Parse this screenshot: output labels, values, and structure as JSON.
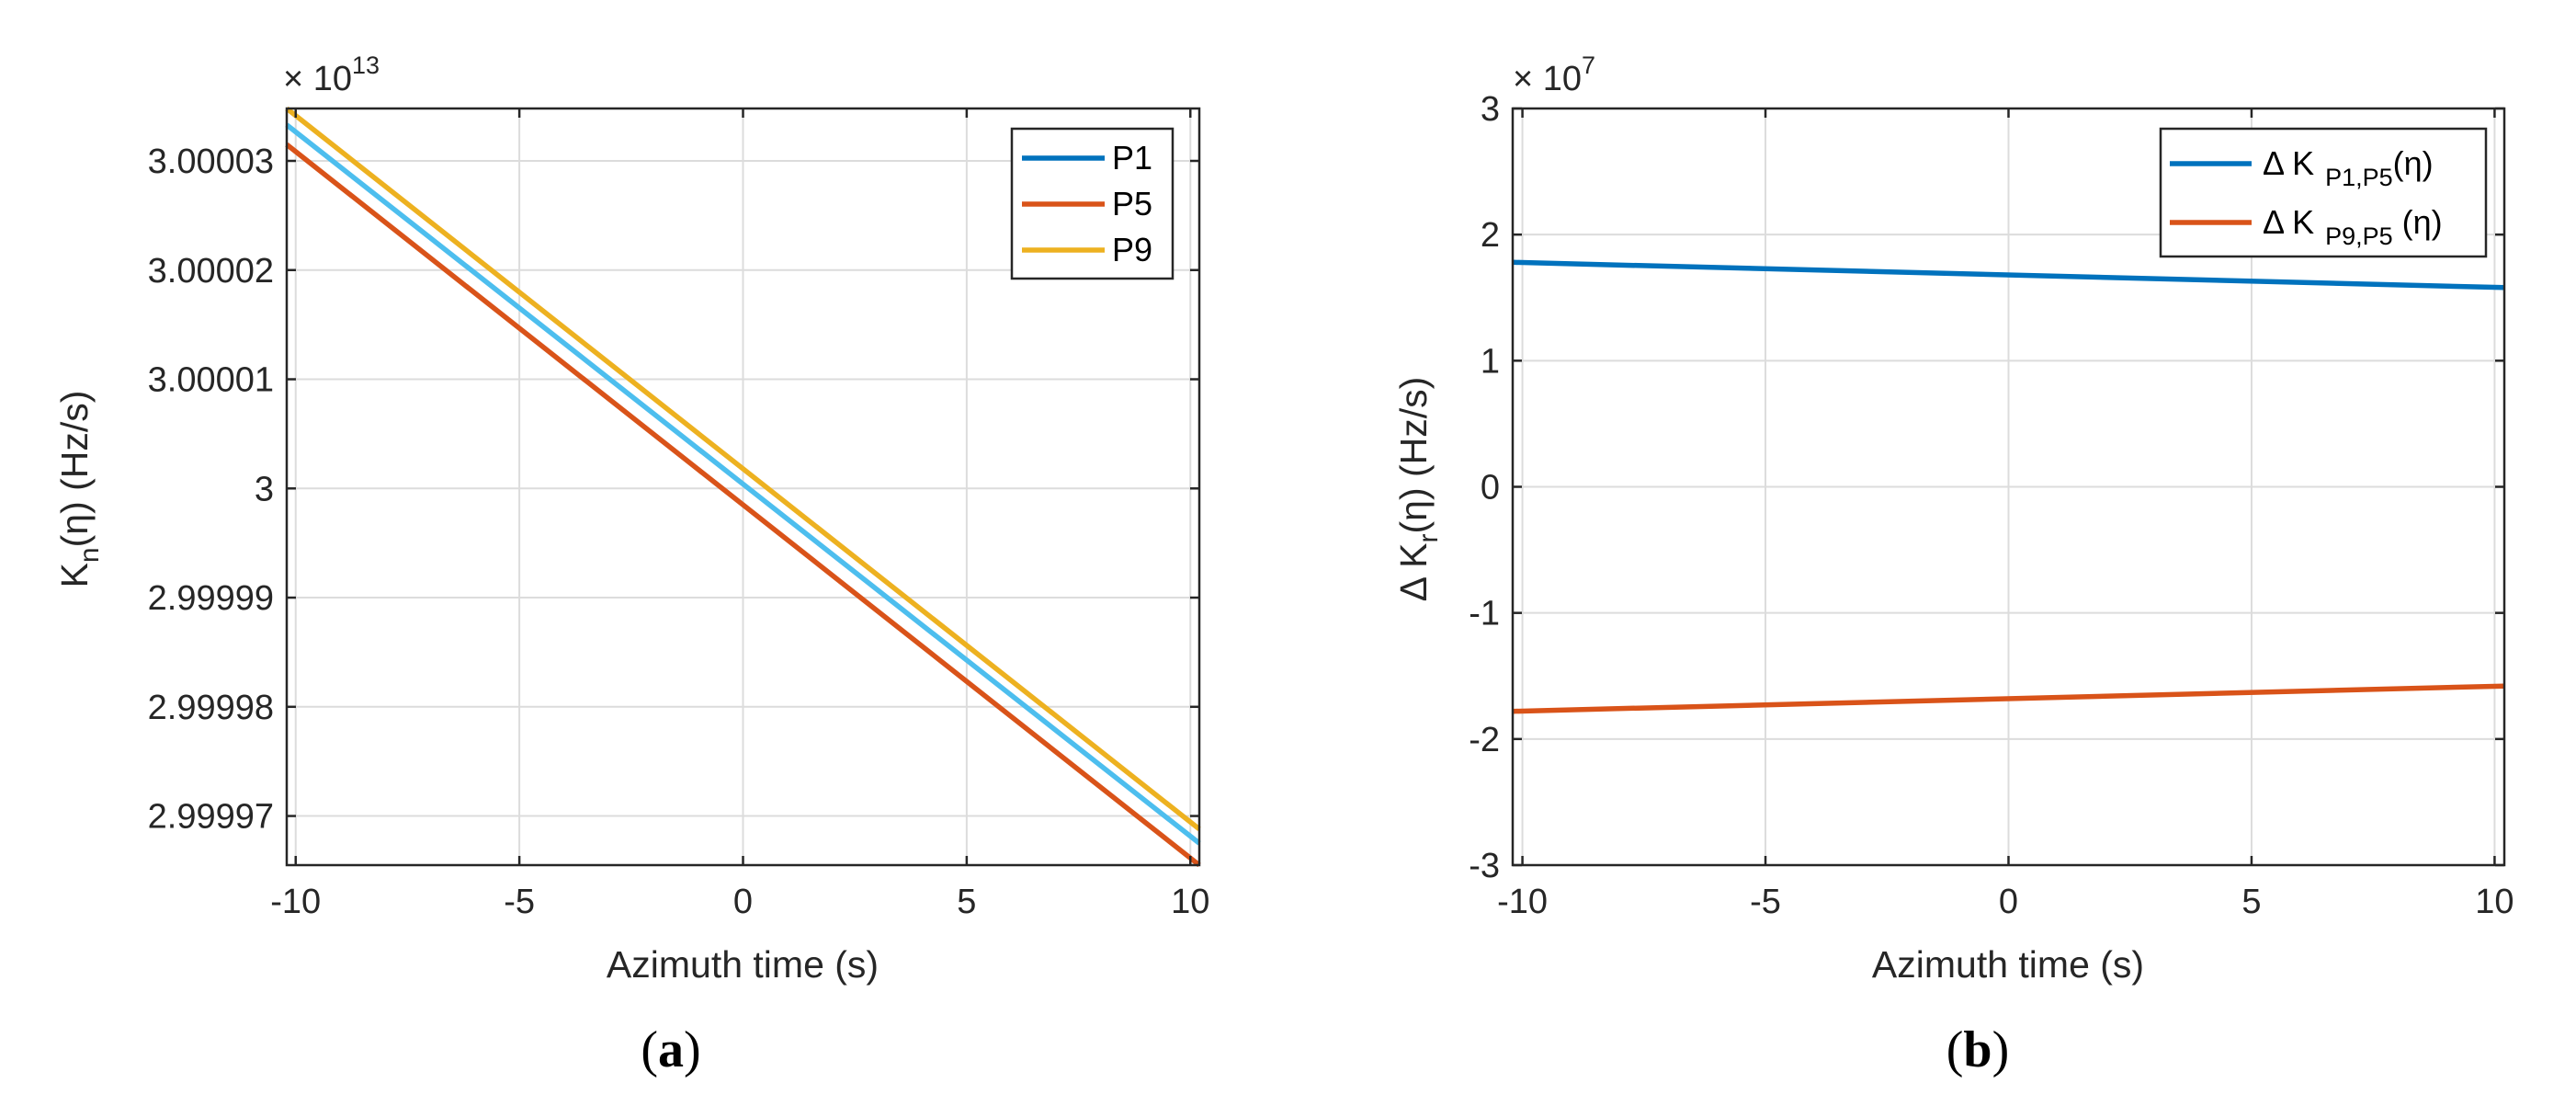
{
  "chart_data": [
    {
      "type": "line",
      "exponent_label": "× 10",
      "exponent_power": "13",
      "ylabel_main": "K",
      "ylabel_sub": "n",
      "ylabel_tail": "(η) (Hz/s)",
      "xlabel": "Azimuth time (s)",
      "caption_open": "(",
      "caption_letter": "a",
      "caption_close": ")",
      "xlim": [
        -10.2,
        10.2
      ],
      "ylim": [
        2.9999655,
        3.0000348
      ],
      "xticks": [
        -10,
        -5,
        0,
        5,
        10
      ],
      "xtick_labels": [
        "-10",
        "-5",
        "0",
        "5",
        "10"
      ],
      "yticks": [
        2.99997,
        2.99998,
        2.99999,
        3.0,
        3.00001,
        3.00002,
        3.00003
      ],
      "ytick_labels": [
        "2.99997",
        "2.99998",
        "2.99999",
        "3",
        "3.00001",
        "3.00002",
        "3.00003"
      ],
      "grid": true,
      "legend_position": "top-right",
      "series": [
        {
          "name": "P1",
          "x": [
            -10.2,
            10.2
          ],
          "y": [
            3.0000333,
            2.9999675
          ],
          "color": "#0072BD",
          "draw_color": "#4DBEEE"
        },
        {
          "name": "P5",
          "x": [
            -10.2,
            10.2
          ],
          "y": [
            3.0000315,
            2.9999655
          ],
          "color": "#D95319",
          "draw_color": "#D95319"
        },
        {
          "name": "P9",
          "x": [
            -10.2,
            10.2
          ],
          "y": [
            3.0000348,
            2.9999688
          ],
          "color": "#EDB120",
          "draw_color": "#EDB120"
        }
      ]
    },
    {
      "type": "line",
      "exponent_label": "× 10",
      "exponent_power": "7",
      "ylabel_main": "Δ K",
      "ylabel_sub": "r",
      "ylabel_tail": "(η) (Hz/s)",
      "xlabel": "Azimuth time (s)",
      "caption_open": "(",
      "caption_letter": "b",
      "caption_close": ")",
      "xlim": [
        -10.2,
        10.2
      ],
      "ylim": [
        -3,
        3
      ],
      "xticks": [
        -10,
        -5,
        0,
        5,
        10
      ],
      "xtick_labels": [
        "-10",
        "-5",
        "0",
        "5",
        "10"
      ],
      "yticks": [
        -3,
        -2,
        -1,
        0,
        1,
        2,
        3
      ],
      "ytick_labels": [
        "-3",
        "-2",
        "-1",
        "0",
        "1",
        "2",
        "3"
      ],
      "grid": true,
      "legend_position": "top-right",
      "series": [
        {
          "name": "Δ K",
          "name_sub": "P1,P5",
          "name_tail": "(η)",
          "x": [
            -10.2,
            10.2
          ],
          "y": [
            1.78,
            1.58
          ],
          "color": "#0072BD",
          "draw_color": "#0072BD"
        },
        {
          "name": "Δ K",
          "name_sub": "P9,P5",
          "name_tail": " (η)",
          "x": [
            -10.2,
            10.2
          ],
          "y": [
            -1.78,
            -1.58
          ],
          "color": "#D95319",
          "draw_color": "#D95319"
        }
      ]
    }
  ]
}
